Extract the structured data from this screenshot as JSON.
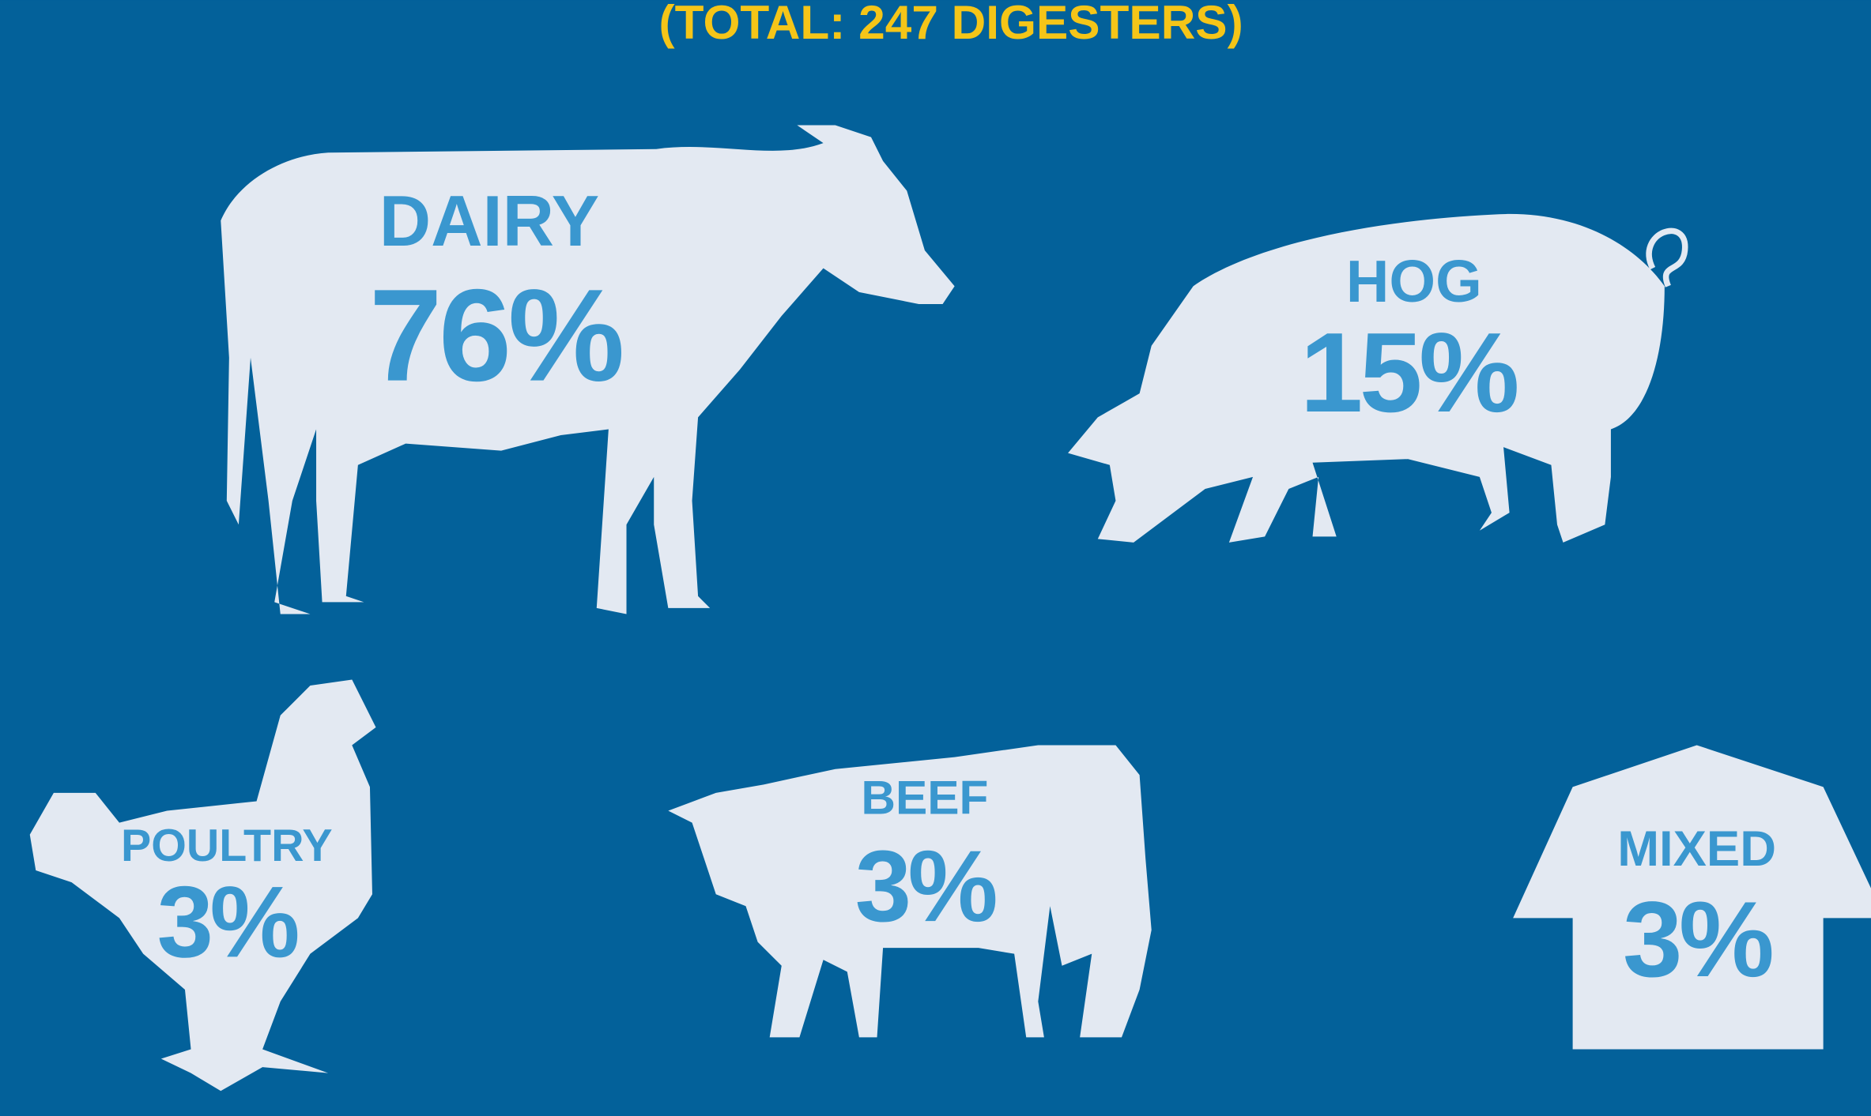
{
  "chart_data": {
    "type": "pictograph",
    "title": "(TOTAL:  247 DIGESTERS)",
    "categories": [
      "DAIRY",
      "HOG",
      "POULTRY",
      "BEEF",
      "MIXED"
    ],
    "values": [
      76,
      15,
      3,
      3,
      3
    ],
    "value_labels": [
      "76%",
      "15%",
      "3%",
      "3%",
      "3%"
    ]
  }
}
